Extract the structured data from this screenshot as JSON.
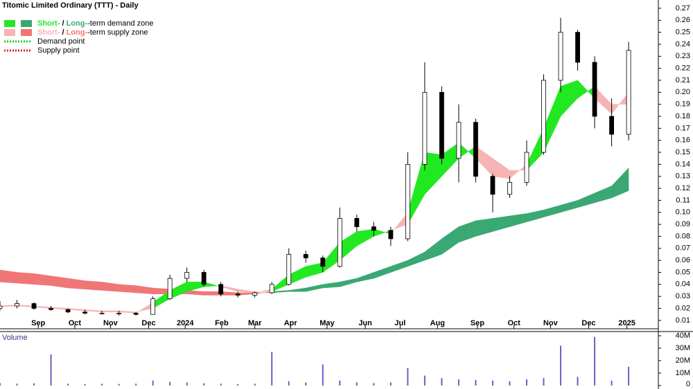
{
  "chart_data": {
    "type": "candlestick",
    "title": "Titomic Limited Ordinary (TTT) - Daily",
    "volume_title": "Volume",
    "x": [
      0,
      2,
      4,
      6,
      8,
      10,
      12,
      14,
      16,
      18,
      20,
      22,
      24,
      26,
      28,
      30,
      32,
      34,
      36,
      38,
      40,
      42,
      44,
      46,
      48,
      50,
      52,
      54,
      56,
      58,
      60,
      62,
      64,
      66,
      68,
      70,
      72,
      74
    ],
    "xlim": [
      0,
      77.5
    ],
    "xticks": [
      {
        "value": 4.5,
        "label": "Sep"
      },
      {
        "value": 8.8,
        "label": "Oct"
      },
      {
        "value": 13.0,
        "label": "Nov"
      },
      {
        "value": 17.5,
        "label": "Dec"
      },
      {
        "value": 21.8,
        "label": "2024"
      },
      {
        "value": 26.1,
        "label": "Feb"
      },
      {
        "value": 30.0,
        "label": "Mar"
      },
      {
        "value": 34.2,
        "label": "Apr"
      },
      {
        "value": 38.5,
        "label": "May"
      },
      {
        "value": 43.0,
        "label": "Jun"
      },
      {
        "value": 47.1,
        "label": "Jul"
      },
      {
        "value": 51.5,
        "label": "Aug"
      },
      {
        "value": 56.2,
        "label": "Sep"
      },
      {
        "value": 60.5,
        "label": "Oct"
      },
      {
        "value": 64.8,
        "label": "Nov"
      },
      {
        "value": 69.3,
        "label": "Dec"
      },
      {
        "value": 73.8,
        "label": "2025"
      }
    ],
    "open": [
      0.02,
      0.022,
      0.024,
      0.02,
      0.019,
      0.017,
      0.016,
      0.016,
      0.016,
      0.015,
      0.028,
      0.045,
      0.05,
      0.04,
      0.032,
      0.031,
      0.033,
      0.04,
      0.065,
      0.062,
      0.055,
      0.095,
      0.088,
      0.085,
      0.078,
      0.14,
      0.2,
      0.145,
      0.175,
      0.13,
      0.115,
      0.125,
      0.15,
      0.21,
      0.25,
      0.225,
      0.18,
      0.165
    ],
    "high": [
      0.026,
      0.027,
      0.025,
      0.022,
      0.02,
      0.019,
      0.018,
      0.018,
      0.017,
      0.03,
      0.048,
      0.054,
      0.052,
      0.042,
      0.034,
      0.034,
      0.042,
      0.07,
      0.068,
      0.064,
      0.104,
      0.098,
      0.092,
      0.088,
      0.15,
      0.225,
      0.205,
      0.19,
      0.178,
      0.132,
      0.13,
      0.16,
      0.215,
      0.262,
      0.252,
      0.23,
      0.195,
      0.242
    ],
    "low": [
      0.018,
      0.02,
      0.019,
      0.018,
      0.016,
      0.015,
      0.015,
      0.014,
      0.014,
      0.015,
      0.027,
      0.042,
      0.038,
      0.03,
      0.029,
      0.029,
      0.032,
      0.039,
      0.058,
      0.05,
      0.054,
      0.084,
      0.08,
      0.072,
      0.076,
      0.135,
      0.14,
      0.125,
      0.125,
      0.1,
      0.112,
      0.122,
      0.148,
      0.2,
      0.218,
      0.17,
      0.155,
      0.16
    ],
    "close": [
      0.022,
      0.024,
      0.02,
      0.019,
      0.017,
      0.016,
      0.016,
      0.016,
      0.015,
      0.028,
      0.045,
      0.05,
      0.04,
      0.032,
      0.031,
      0.033,
      0.04,
      0.065,
      0.062,
      0.055,
      0.095,
      0.088,
      0.085,
      0.078,
      0.14,
      0.2,
      0.145,
      0.175,
      0.13,
      0.115,
      0.125,
      0.15,
      0.21,
      0.25,
      0.225,
      0.18,
      0.165,
      0.235
    ],
    "short_fast": [
      0.021,
      0.022,
      0.021,
      0.02,
      0.019,
      0.018,
      0.017,
      0.017,
      0.016,
      0.025,
      0.035,
      0.042,
      0.042,
      0.038,
      0.034,
      0.033,
      0.036,
      0.048,
      0.055,
      0.058,
      0.075,
      0.084,
      0.086,
      0.082,
      0.1,
      0.15,
      0.148,
      0.158,
      0.145,
      0.13,
      0.128,
      0.14,
      0.17,
      0.205,
      0.21,
      0.195,
      0.182,
      0.2
    ],
    "short_slow": [
      0.022,
      0.023,
      0.022,
      0.021,
      0.02,
      0.019,
      0.018,
      0.018,
      0.017,
      0.02,
      0.028,
      0.034,
      0.038,
      0.039,
      0.036,
      0.034,
      0.034,
      0.04,
      0.046,
      0.05,
      0.06,
      0.072,
      0.08,
      0.085,
      0.09,
      0.115,
      0.13,
      0.145,
      0.155,
      0.145,
      0.135,
      0.135,
      0.15,
      0.18,
      0.195,
      0.205,
      0.19,
      0.19
    ],
    "long_fast": [
      0.042,
      0.041,
      0.04,
      0.039,
      0.037,
      0.036,
      0.035,
      0.034,
      0.033,
      0.032,
      0.032,
      0.032,
      0.031,
      0.031,
      0.031,
      0.032,
      0.034,
      0.035,
      0.037,
      0.04,
      0.042,
      0.045,
      0.05,
      0.055,
      0.06,
      0.067,
      0.078,
      0.088,
      0.093,
      0.095,
      0.097,
      0.099,
      0.102,
      0.106,
      0.11,
      0.116,
      0.122,
      0.137
    ],
    "long_slow": [
      0.052,
      0.05,
      0.049,
      0.047,
      0.045,
      0.043,
      0.042,
      0.04,
      0.039,
      0.037,
      0.036,
      0.035,
      0.034,
      0.034,
      0.033,
      0.033,
      0.033,
      0.034,
      0.034,
      0.037,
      0.038,
      0.042,
      0.045,
      0.05,
      0.055,
      0.06,
      0.065,
      0.075,
      0.08,
      0.084,
      0.088,
      0.092,
      0.096,
      0.1,
      0.104,
      0.108,
      0.112,
      0.118
    ],
    "ylim": [
      0.003,
      0.274
    ],
    "yticks": [
      0.01,
      0.02,
      0.03,
      0.04,
      0.05,
      0.06,
      0.07,
      0.08,
      0.09,
      {
        "value": 0.1,
        "label": "0.10"
      },
      0.11,
      0.12,
      0.13,
      0.14,
      0.15,
      0.16,
      0.17,
      0.18,
      0.19,
      {
        "value": 0.2,
        "label": "0.20"
      },
      0.21,
      0.22,
      0.23,
      0.24,
      0.25,
      0.26,
      0.27
    ],
    "volume": [
      2000000,
      1500000,
      1800000,
      25000000,
      1500000,
      1200000,
      1400000,
      1300000,
      1500000,
      4000000,
      3000000,
      2500000,
      1800000,
      1500000,
      1200000,
      1500000,
      27000000,
      3500000,
      2500000,
      17000000,
      4000000,
      2500000,
      2000000,
      2500000,
      14000000,
      8000000,
      6000000,
      5000000,
      4500000,
      4000000,
      3500000,
      5000000,
      6000000,
      32000000,
      7000000,
      39000000,
      4000000,
      15000000
    ],
    "volume_ylim": [
      0,
      42800000
    ],
    "volume_yticks": [
      0,
      {
        "value": 10000000,
        "label": "10M"
      },
      {
        "value": 20000000,
        "label": "20M"
      },
      {
        "value": 30000000,
        "label": "30M"
      },
      {
        "value": 40000000,
        "label": "40M"
      }
    ],
    "colors": {
      "short_demand": "#22e822",
      "long_demand": "#3aa872",
      "short_supply": "#f7b4b4",
      "long_supply": "#f07676",
      "demand_point": "#22cc22",
      "supply_point": "#dd2222",
      "volume": "#6b5fc4"
    },
    "legend": [
      {
        "short": "Short-",
        "sep": " / ",
        "long": "Long-",
        "text": "-term demand zone"
      },
      {
        "short": "Short-",
        "sep": " / ",
        "long": "Long-",
        "text": "-term supply zone"
      },
      {
        "text": "Demand point"
      },
      {
        "text": "Supply point"
      }
    ]
  }
}
